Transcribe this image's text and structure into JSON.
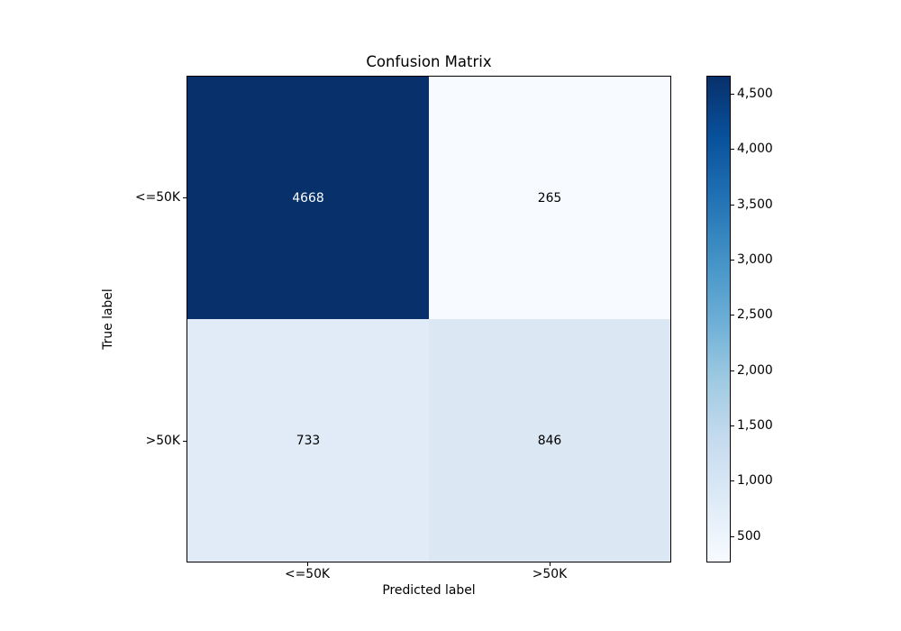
{
  "chart_data": {
    "type": "heatmap",
    "title": "Confusion Matrix",
    "xlabel": "Predicted label",
    "ylabel": "True label",
    "x_categories": [
      "<=50K",
      ">50K"
    ],
    "y_categories": [
      "<=50K",
      ">50K"
    ],
    "matrix": [
      [
        4668,
        265
      ],
      [
        733,
        846
      ]
    ],
    "cell_colors": [
      [
        "#08306b",
        "#f7fbff"
      ],
      [
        "#e0ebf7",
        "#dbe7f3"
      ]
    ],
    "cell_text_colors": [
      [
        "#ffffff",
        "#000000"
      ],
      [
        "#000000",
        "#000000"
      ]
    ],
    "colormap": "Blues",
    "vmin": 265,
    "vmax": 4668,
    "colorbar_ticks": [
      500,
      1000,
      1500,
      2000,
      2500,
      3000,
      3500,
      4000,
      4500
    ],
    "colorbar_tick_labels": [
      "500",
      "1,000",
      "1,500",
      "2,000",
      "2,500",
      "3,000",
      "3,500",
      "4,000",
      "4,500"
    ],
    "colorbar_gradient_top_to_bottom": [
      "#08306b",
      "#08519c",
      "#2171b5",
      "#4292c6",
      "#6baed6",
      "#9ecae1",
      "#c6dbef",
      "#deebf7",
      "#f7fbff"
    ],
    "grid": false,
    "legend": "colorbar-right"
  }
}
